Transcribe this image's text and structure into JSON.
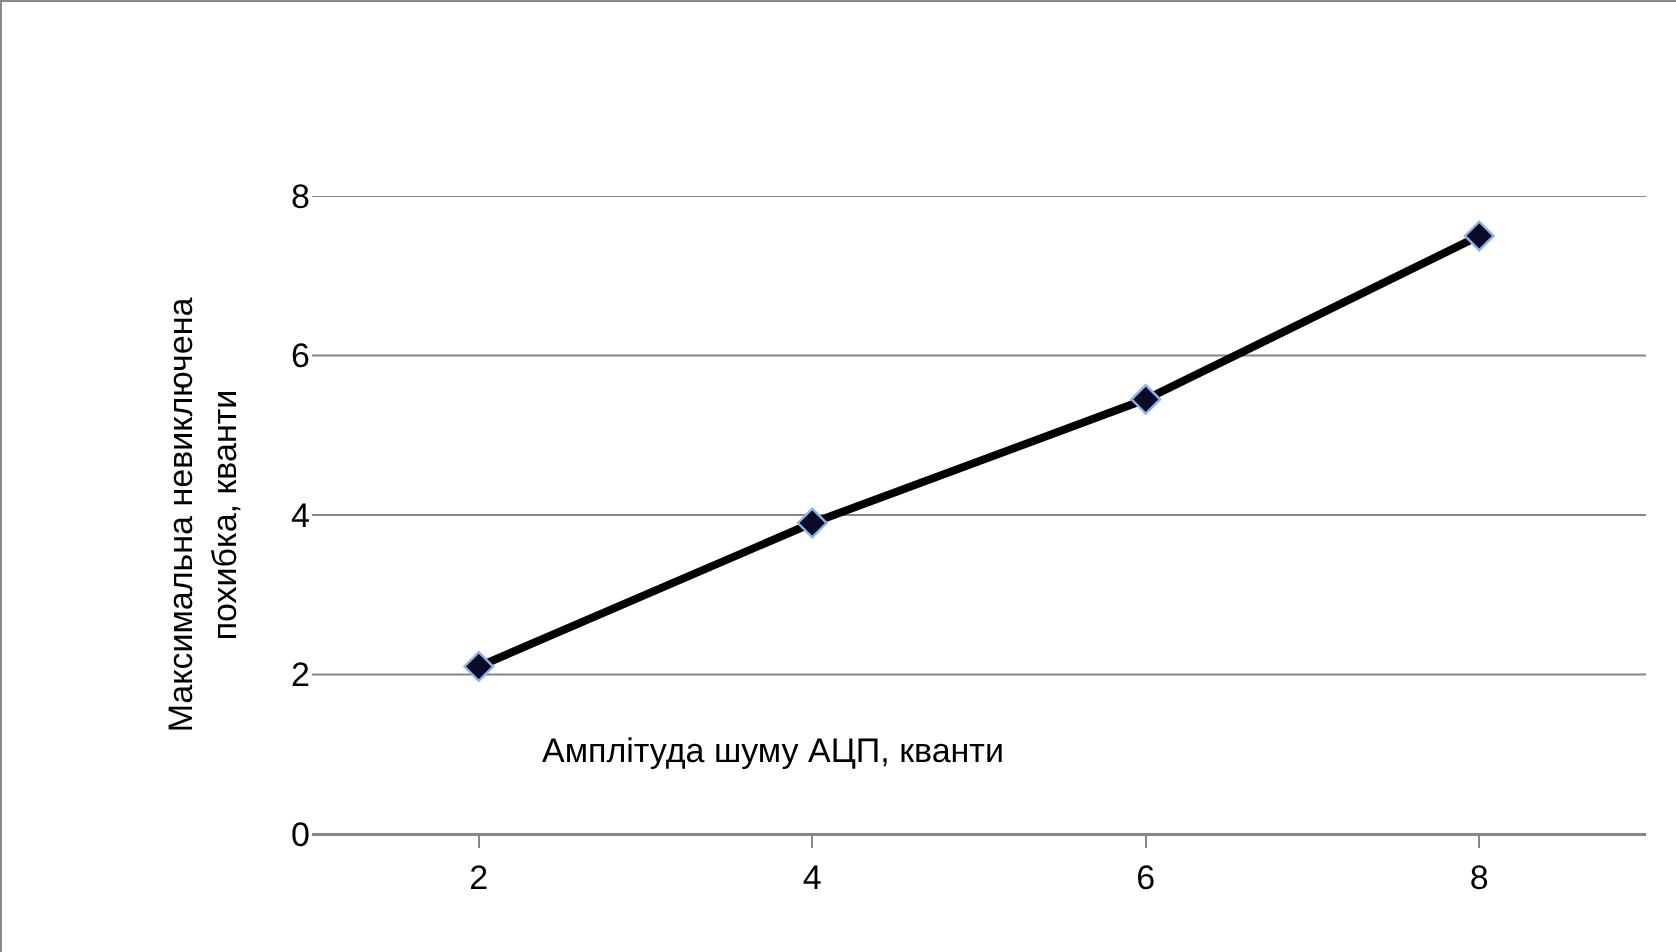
{
  "chart_data": {
    "type": "line",
    "xlabel": "Амплітуда шуму АЦП, кванти",
    "ylabel": "Максимальна невиключена похибка, кванти",
    "categories": [
      "2",
      "4",
      "6",
      "8"
    ],
    "series": [
      {
        "color": "#000000",
        "values": [
          2.1,
          3.9,
          5.45,
          7.5
        ]
      }
    ],
    "ylim": [
      0,
      8
    ],
    "yticks": [
      0,
      2,
      4,
      6,
      8
    ],
    "grid": "y",
    "marker": "diamond",
    "line_style": "solid"
  }
}
